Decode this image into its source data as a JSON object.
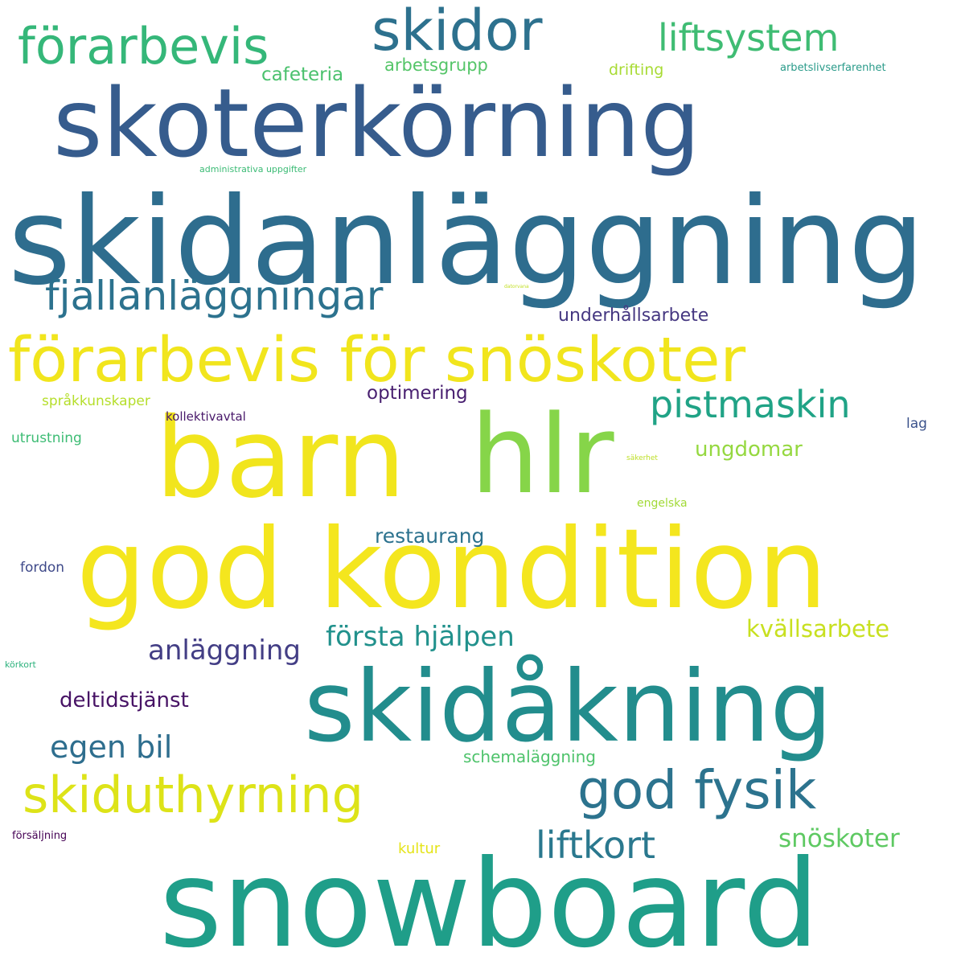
{
  "colors": {
    "background": "#ffffff",
    "palette": [
      "#f1e51d",
      "#86d549",
      "#2fb47c",
      "#1f9e89",
      "#26828e",
      "#31688e",
      "#3e4a89",
      "#482878",
      "#440154",
      "#b2dd2d",
      "#52c569"
    ]
  },
  "words": [
    {
      "text": "skoterkörning",
      "color": "#365c8d"
    },
    {
      "text": "skidanläggning",
      "color": "#2e6d8e"
    },
    {
      "text": "förarbevis för snöskoter",
      "color": "#f1e51d"
    },
    {
      "text": "barn",
      "color": "#f1e51d"
    },
    {
      "text": "hlr",
      "color": "#86d549"
    },
    {
      "text": "god kondition",
      "color": "#f4e61e"
    },
    {
      "text": "skidåkning",
      "color": "#228d8d"
    },
    {
      "text": "snowboard",
      "color": "#1f9e89"
    },
    {
      "text": "skidor",
      "color": "#2d718e"
    },
    {
      "text": "förarbevis",
      "color": "#35b779"
    },
    {
      "text": "liftsystem",
      "color": "#3fbc73"
    },
    {
      "text": "fjällanläggningar",
      "color": "#2c728e"
    },
    {
      "text": "pistmaskin",
      "color": "#20a386"
    },
    {
      "text": "skiduthyrning",
      "color": "#dde318"
    },
    {
      "text": "god fysik",
      "color": "#2c738e"
    },
    {
      "text": "liftkort",
      "color": "#2a788e"
    },
    {
      "text": "cafeteria",
      "color": "#4ac16d"
    },
    {
      "text": "arbetsgrupp",
      "color": "#54c568"
    },
    {
      "text": "drifting",
      "color": "#a8db34"
    },
    {
      "text": "arbetslivserfarenhet",
      "color": "#2a9b8a"
    },
    {
      "text": "administrativa uppgifter",
      "color": "#3bbb75"
    },
    {
      "text": "datorvana",
      "color": "#c2df23"
    },
    {
      "text": "underhållsarbete",
      "color": "#453781"
    },
    {
      "text": "optimering",
      "color": "#481f70"
    },
    {
      "text": "språkkunskaper",
      "color": "#b5de2b"
    },
    {
      "text": "kollektivavtal",
      "color": "#48186a"
    },
    {
      "text": "utrustning",
      "color": "#3dbc74"
    },
    {
      "text": "ungdomar",
      "color": "#95d840"
    },
    {
      "text": "lag",
      "color": "#3b528b"
    },
    {
      "text": "säkerhet",
      "color": "#bddf26"
    },
    {
      "text": "engelska",
      "color": "#a2da37"
    },
    {
      "text": "restaurang",
      "color": "#2c728e"
    },
    {
      "text": "fordon",
      "color": "#3e4989"
    },
    {
      "text": "första hjälpen",
      "color": "#21918c"
    },
    {
      "text": "kvällsarbete",
      "color": "#c8e020"
    },
    {
      "text": "anläggning",
      "color": "#433e85"
    },
    {
      "text": "körkort",
      "color": "#2db27d"
    },
    {
      "text": "deltidstjänst",
      "color": "#471365"
    },
    {
      "text": "egen bil",
      "color": "#2e6e8e"
    },
    {
      "text": "schemaläggning",
      "color": "#4ec36b"
    },
    {
      "text": "snöskoter",
      "color": "#5ec962"
    },
    {
      "text": "försäljning",
      "color": "#440154"
    },
    {
      "text": "kultur",
      "color": "#e5e419"
    }
  ]
}
